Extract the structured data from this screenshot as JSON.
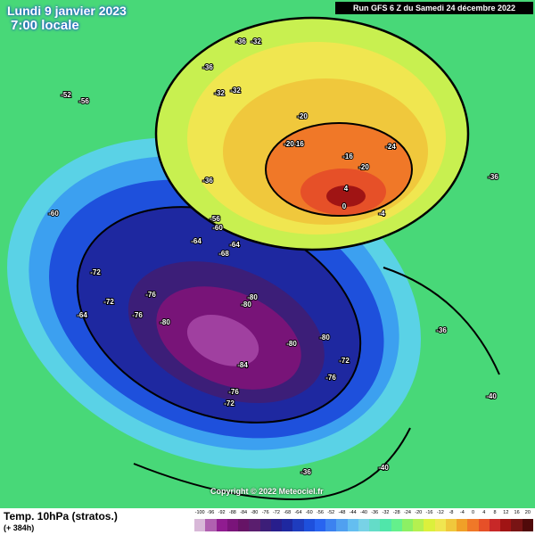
{
  "header": {
    "date": "Lundi 9 janvier 2023",
    "time": "7:00 locale",
    "run": "Run GFS 6 Z du Samedi 24 décembre 2022",
    "copyright": "Copyright © 2022 Meteociel.fr"
  },
  "footer": {
    "title": "Temp. 10hPa (stratos.)",
    "lead": "(+ 384h)"
  },
  "legend": {
    "labels": [
      "-100",
      "-96",
      "-92",
      "-88",
      "-84",
      "-80",
      "-76",
      "-72",
      "-68",
      "-64",
      "-60",
      "-56",
      "-52",
      "-48",
      "-44",
      "-40",
      "-36",
      "-32",
      "-28",
      "-24",
      "-20",
      "-16",
      "-12",
      "-8",
      "-4",
      "0",
      "4",
      "8",
      "12",
      "16",
      "20"
    ],
    "colors": [
      "#d8b8d8",
      "#b060b0",
      "#901c90",
      "#7a147a",
      "#661466",
      "#5a1e6e",
      "#3c1e78",
      "#281e8c",
      "#1e28a0",
      "#1e3cbe",
      "#1e50dc",
      "#2864f0",
      "#3c82f0",
      "#50a0f0",
      "#64bef0",
      "#78d2e6",
      "#64dcc8",
      "#50e6aa",
      "#64f08c",
      "#8cf064",
      "#b4f050",
      "#dcf03c",
      "#f0e650",
      "#f0c83c",
      "#f0a028",
      "#f07828",
      "#e65028",
      "#c82828",
      "#a01414",
      "#781414",
      "#500a0a"
    ]
  },
  "contour_labels": [
    "-36",
    "-32",
    "-36",
    "-32",
    "-32",
    "-20",
    "-16",
    "-20",
    "-16",
    "-20",
    "-24",
    "4",
    "0",
    "-4",
    "-36",
    "-56",
    "-60",
    "-64",
    "-64",
    "-68",
    "-60",
    "-64",
    "-72",
    "-72",
    "-76",
    "-76",
    "-80",
    "-80",
    "-80",
    "-84",
    "-80",
    "-80",
    "-76",
    "-72",
    "-76",
    "-72",
    "-52",
    "-56",
    "-36",
    "-36",
    "-40",
    "-36",
    "-40"
  ]
}
